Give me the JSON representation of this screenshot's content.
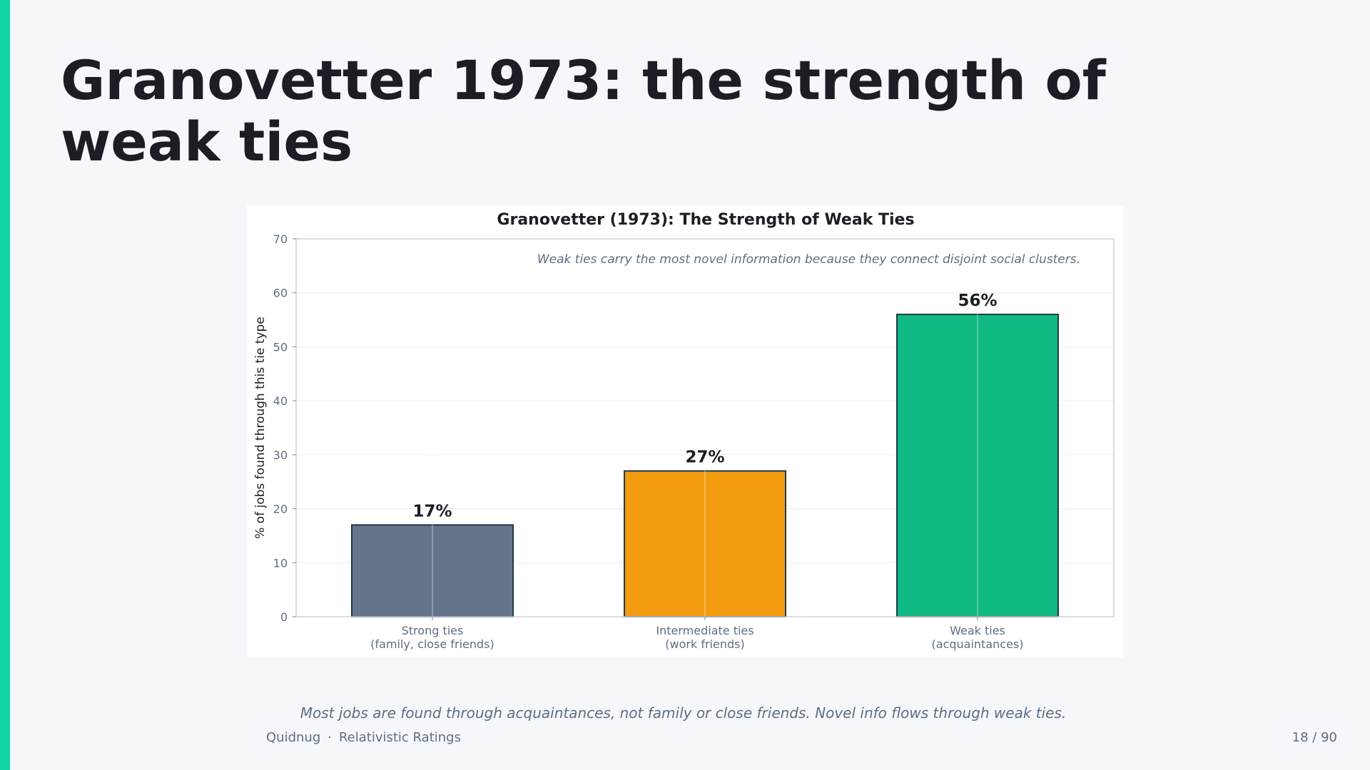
{
  "slide": {
    "title": "Granovetter 1973: the strength of weak ties",
    "caption": "Most jobs are found through acquaintances, not family or close friends. Novel info flows through weak ties.",
    "footer_brand": "Quidnug",
    "footer_separator": "·",
    "footer_section": "Relativistic Ratings",
    "page_number": "18 / 90"
  },
  "colors": {
    "accent": "#10d4a4",
    "bar_strong": "#64748b",
    "bar_intermediate": "#f39c0f",
    "bar_weak": "#10b981"
  },
  "chart_data": {
    "type": "bar",
    "title": "Granovetter (1973): The Strength of Weak Ties",
    "annotation": "Weak ties carry the most novel information because they connect disjoint social clusters.",
    "xlabel": "",
    "ylabel": "% of jobs found through this tie type",
    "categories": [
      [
        "Strong ties",
        "(family, close friends)"
      ],
      [
        "Intermediate ties",
        "(work friends)"
      ],
      [
        "Weak ties",
        "(acquaintances)"
      ]
    ],
    "values": [
      17,
      27,
      56
    ],
    "value_labels": [
      "17%",
      "27%",
      "56%"
    ],
    "bar_colors": [
      "#64748b",
      "#f39c0f",
      "#10b981"
    ],
    "ylim": [
      0,
      70
    ],
    "yticks": [
      0,
      10,
      20,
      30,
      40,
      50,
      60,
      70
    ],
    "grid": true
  }
}
